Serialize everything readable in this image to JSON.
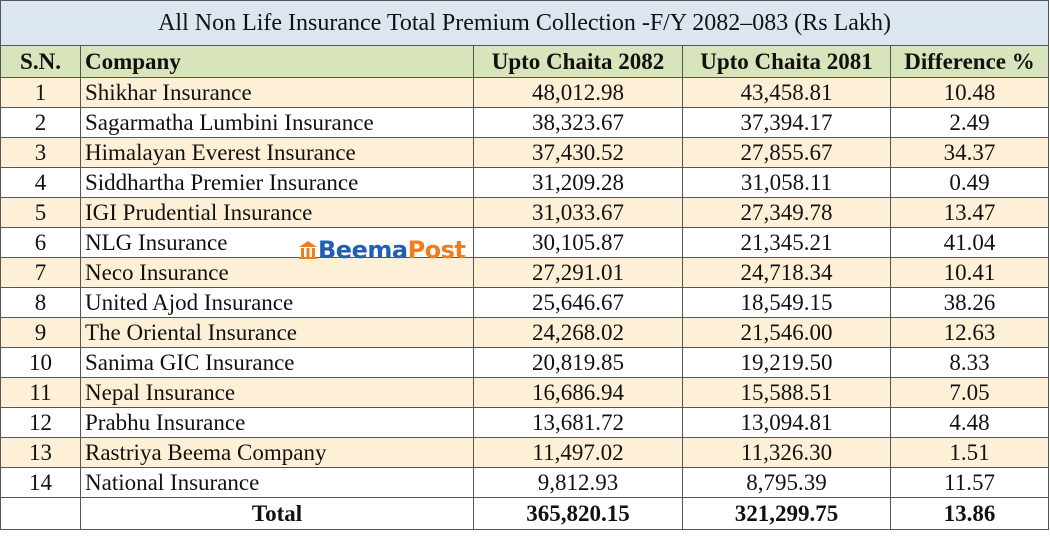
{
  "title": "All Non Life Insurance Total Premium Collection -F/Y 2082–083  (Rs Lakh)",
  "columns": [
    "S.N.",
    "Company",
    "Upto Chaita 2082",
    "Upto Chaita 2081",
    "Difference %"
  ],
  "rows": [
    [
      "1",
      "Shikhar Insurance",
      "48,012.98",
      "43,458.81",
      "10.48"
    ],
    [
      "2",
      "Sagarmatha Lumbini Insurance",
      "38,323.67",
      "37,394.17",
      "2.49"
    ],
    [
      "3",
      "Himalayan Everest Insurance",
      "37,430.52",
      "27,855.67",
      "34.37"
    ],
    [
      "4",
      "Siddhartha Premier Insurance",
      "31,209.28",
      "31,058.11",
      "0.49"
    ],
    [
      "5",
      "IGI Prudential Insurance",
      "31,033.67",
      "27,349.78",
      "13.47"
    ],
    [
      "6",
      "NLG Insurance",
      "30,105.87",
      "21,345.21",
      "41.04"
    ],
    [
      "7",
      "Neco Insurance",
      "27,291.01",
      "24,718.34",
      "10.41"
    ],
    [
      "8",
      "United Ajod Insurance",
      "25,646.67",
      "18,549.15",
      "38.26"
    ],
    [
      "9",
      "The Oriental Insurance",
      "24,268.02",
      "21,546.00",
      "12.63"
    ],
    [
      "10",
      "Sanima GIC Insurance",
      "20,819.85",
      "19,219.50",
      "8.33"
    ],
    [
      "11",
      "Nepal Insurance",
      "16,686.94",
      "15,588.51",
      "7.05"
    ],
    [
      "12",
      "Prabhu Insurance",
      "13,681.72",
      "13,094.81",
      "4.48"
    ],
    [
      "13",
      "Rastriya Beema Company",
      "11,497.02",
      "11,326.30",
      "1.51"
    ],
    [
      "14",
      "National Insurance",
      "9,812.93",
      "8,795.39",
      "11.57"
    ]
  ],
  "total": {
    "label": "Total",
    "values": [
      "365,820.15",
      "321,299.75",
      "13.86"
    ]
  },
  "watermark": [
    "Beema",
    "Post"
  ]
}
